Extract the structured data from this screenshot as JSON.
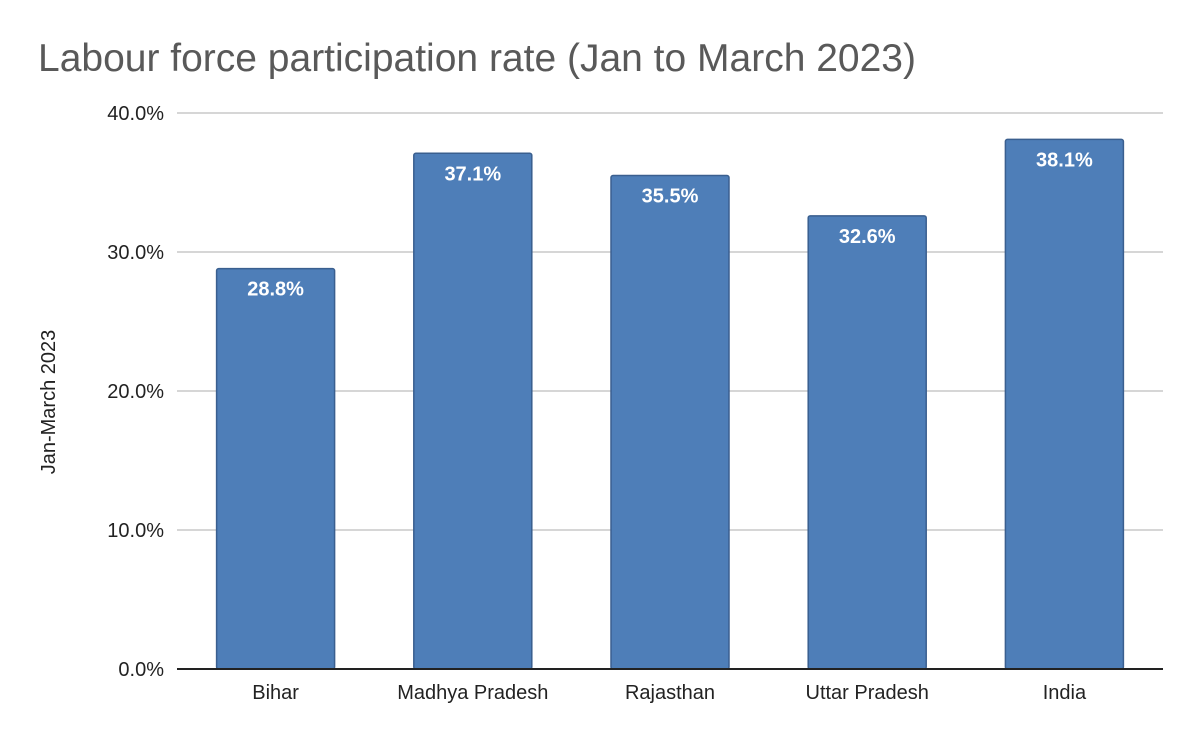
{
  "chart_data": {
    "type": "bar",
    "title": "Labour force participation rate (Jan to March 2023)",
    "xlabel": "",
    "ylabel": "Jan-March 2023",
    "categories": [
      "Bihar",
      "Madhya Pradesh",
      "Rajasthan",
      "Uttar Pradesh",
      "India"
    ],
    "series": [
      {
        "name": "Jan-March 2023",
        "values": [
          28.8,
          37.1,
          35.5,
          32.6,
          38.1
        ],
        "value_labels": [
          "28.8%",
          "37.1%",
          "35.5%",
          "32.6%",
          "38.1%"
        ]
      }
    ],
    "ylim": [
      0,
      40
    ],
    "yticks": [
      0,
      10,
      20,
      30,
      40
    ],
    "ytick_labels": [
      "0.0%",
      "10.0%",
      "20.0%",
      "30.0%",
      "40.0%"
    ],
    "grid": true,
    "legend": "none",
    "colors": {
      "bar_fill": "#4e7eb8",
      "bar_stroke": "#3a5f8f",
      "grid": "#c8c8c8",
      "title": "#595959"
    }
  }
}
